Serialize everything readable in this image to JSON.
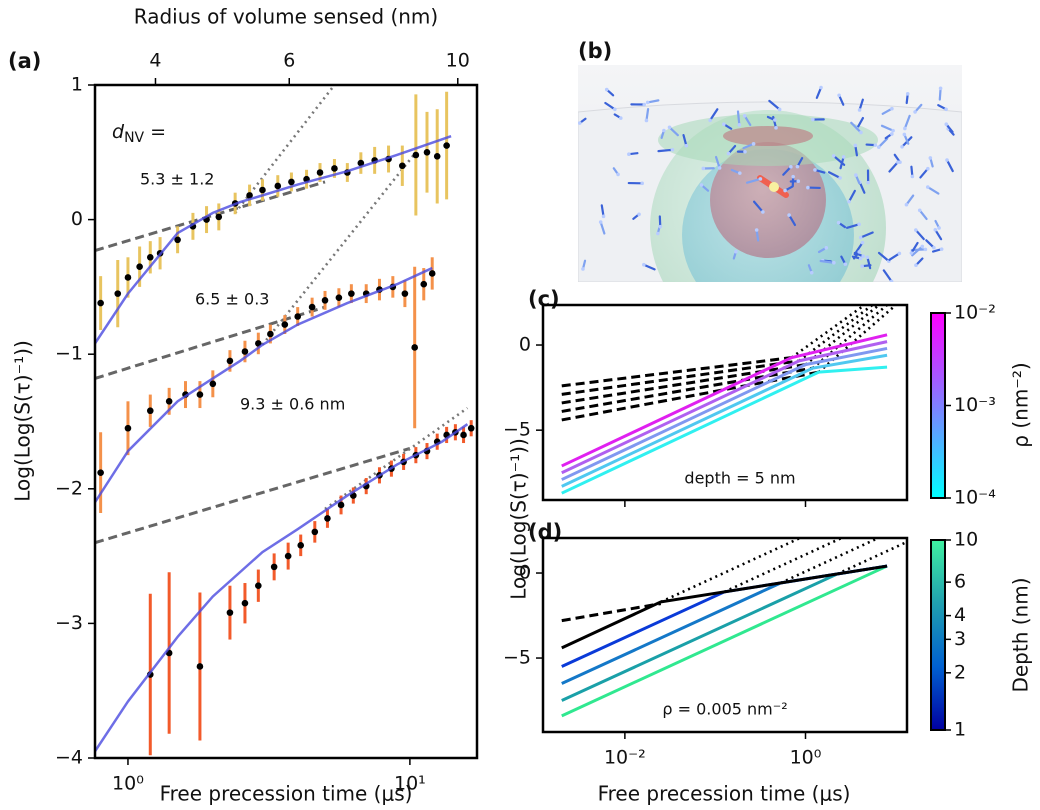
{
  "chart_data": [
    {
      "type": "scatter",
      "panel_label": "(a)",
      "x_label": "Free precession time (μs)",
      "y_label": "Log(Log(S(τ)⁻¹))",
      "x2_label": "Radius of volume sensed (nm)",
      "xscale": "log",
      "xlim": [
        0.764,
        17.3
      ],
      "xticks": [
        {
          "value": 1,
          "label": "10⁰"
        },
        {
          "value": 10,
          "label": "10¹"
        }
      ],
      "x2scale": "log",
      "x2lim": [
        3.33,
        10.6
      ],
      "x2ticks": [
        4,
        6,
        10
      ],
      "ylim": [
        -4,
        1
      ],
      "yticks": [
        {
          "value": -4,
          "label": "−4"
        },
        {
          "value": -3,
          "label": "−3"
        },
        {
          "value": -2,
          "label": "−2"
        },
        {
          "value": -1,
          "label": "−1"
        },
        0,
        1
      ],
      "dnv_label": {
        "symbol": "d",
        "subscript": "NV",
        "equals": "="
      },
      "annotations": [
        "5.3 ± 1.2",
        "6.5 ± 0.3",
        "9.3 ± 0.6 nm"
      ],
      "series": [
        {
          "color": "#e8c45f",
          "x": [
            0.8,
            0.92,
            1.0,
            1.1,
            1.2,
            1.3,
            1.5,
            1.7,
            1.9,
            2.1,
            2.4,
            2.7,
            3.0,
            3.4,
            3.8,
            4.3,
            4.8,
            5.4,
            6.0,
            6.7,
            7.5,
            8.4,
            9.4,
            10.5,
            11.5,
            12.5,
            13.5
          ],
          "values": [
            -0.62,
            -0.55,
            -0.43,
            -0.35,
            -0.28,
            -0.25,
            -0.15,
            -0.05,
            0.0,
            0.02,
            0.12,
            0.18,
            0.22,
            0.25,
            0.28,
            0.3,
            0.35,
            0.38,
            0.35,
            0.42,
            0.44,
            0.45,
            0.4,
            0.48,
            0.5,
            0.47,
            0.55
          ],
          "errors": [
            0.2,
            0.25,
            0.15,
            0.15,
            0.12,
            0.12,
            0.1,
            0.1,
            0.1,
            0.1,
            0.08,
            0.08,
            0.08,
            0.08,
            0.07,
            0.07,
            0.07,
            0.07,
            0.07,
            0.08,
            0.1,
            0.1,
            0.15,
            0.45,
            0.3,
            0.35,
            0.4
          ]
        },
        {
          "color": "#f4914a",
          "x": [
            0.8,
            1.0,
            1.2,
            1.4,
            1.6,
            1.8,
            2.0,
            2.3,
            2.6,
            2.9,
            3.2,
            3.6,
            4.0,
            4.5,
            5.0,
            5.6,
            6.2,
            7.0,
            7.8,
            8.7,
            9.6,
            10.4,
            11.2,
            12.0
          ],
          "values": [
            -1.88,
            -1.55,
            -1.42,
            -1.35,
            -1.3,
            -1.3,
            -1.22,
            -1.05,
            -0.98,
            -0.92,
            -0.85,
            -0.78,
            -0.72,
            -0.65,
            -0.6,
            -0.58,
            -0.55,
            -0.55,
            -0.52,
            -0.5,
            -0.55,
            -0.95,
            -0.48,
            -0.4
          ],
          "errors": [
            0.3,
            0.2,
            0.12,
            0.1,
            0.1,
            0.1,
            0.1,
            0.08,
            0.08,
            0.08,
            0.07,
            0.07,
            0.07,
            0.07,
            0.07,
            0.07,
            0.07,
            0.07,
            0.08,
            0.08,
            0.1,
            0.6,
            0.12,
            0.12
          ]
        },
        {
          "color": "#f25a2a",
          "x": [
            1.2,
            1.4,
            1.8,
            2.3,
            2.6,
            2.9,
            3.3,
            3.7,
            4.1,
            4.6,
            5.1,
            5.7,
            6.3,
            7.0,
            7.8,
            8.6,
            9.5,
            10.5,
            11.5,
            12.5,
            13.5,
            14.5,
            15.5,
            16.5
          ],
          "values": [
            -3.38,
            -3.22,
            -3.32,
            -2.92,
            -2.85,
            -2.72,
            -2.58,
            -2.5,
            -2.42,
            -2.32,
            -2.22,
            -2.12,
            -2.05,
            -1.98,
            -1.9,
            -1.85,
            -1.8,
            -1.75,
            -1.72,
            -1.65,
            -1.6,
            -1.58,
            -1.6,
            -1.55
          ],
          "errors": [
            0.6,
            0.6,
            0.55,
            0.2,
            0.15,
            0.12,
            0.1,
            0.1,
            0.08,
            0.08,
            0.07,
            0.07,
            0.06,
            0.06,
            0.06,
            0.06,
            0.06,
            0.06,
            0.06,
            0.06,
            0.06,
            0.06,
            0.06,
            0.06
          ]
        }
      ],
      "lines": [
        {
          "style": "dashed",
          "color": "#666666",
          "x": [
            0.764,
            5
          ],
          "values": [
            -0.23,
            0.28
          ]
        },
        {
          "style": "dashed",
          "color": "#666666",
          "x": [
            0.764,
            5
          ],
          "values": [
            -1.18,
            -0.65
          ]
        },
        {
          "style": "dashed",
          "color": "#666666",
          "x": [
            0.764,
            10
          ],
          "values": [
            -2.4,
            -1.7
          ]
        },
        {
          "style": "dotted",
          "color": "#777777",
          "x": [
            2.4,
            5.4
          ],
          "values": [
            0.05,
            1
          ]
        },
        {
          "style": "dotted",
          "color": "#777777",
          "x": [
            3,
            10.5
          ],
          "values": [
            -0.93,
            0.5
          ]
        },
        {
          "style": "dotted",
          "color": "#777777",
          "x": [
            5,
            16
          ],
          "values": [
            -2.15,
            -1.4
          ]
        },
        {
          "style": "solid",
          "color": "#4a4ae0",
          "x": [
            0.764,
            1,
            1.5,
            2,
            2.5,
            3,
            4,
            6,
            9,
            14
          ],
          "values": [
            -0.92,
            -0.55,
            -0.1,
            0.05,
            0.13,
            0.18,
            0.26,
            0.36,
            0.48,
            0.62
          ]
        },
        {
          "style": "solid",
          "color": "#4a4ae0",
          "x": [
            0.764,
            1,
            1.5,
            2,
            2.5,
            3,
            4,
            6,
            9,
            12
          ],
          "values": [
            -2.1,
            -1.72,
            -1.35,
            -1.18,
            -1.05,
            -0.93,
            -0.78,
            -0.62,
            -0.48,
            -0.36
          ]
        },
        {
          "style": "solid",
          "color": "#4a4ae0",
          "x": [
            0.764,
            1,
            1.5,
            2,
            3,
            4,
            6,
            9,
            13,
            16
          ],
          "values": [
            -3.95,
            -3.58,
            -3.1,
            -2.8,
            -2.47,
            -2.3,
            -2.05,
            -1.82,
            -1.65,
            -1.52
          ]
        }
      ]
    },
    {
      "type": "line",
      "panel_label": "(c)",
      "y_label": "Log(Log(S(τ)⁻¹))",
      "xscale": "log",
      "xlim": [
        0.00124,
        13.3
      ],
      "xticks": [
        0.01,
        1
      ],
      "xtick_labels": false,
      "ylim": [
        -9.1,
        2.35
      ],
      "yticks": [
        {
          "value": -5,
          "label": "−5"
        },
        0
      ],
      "annotations": [
        "depth = 5 nm"
      ],
      "colorbar": {
        "label": "ρ (nm⁻²)",
        "scale": "log",
        "lim": [
          0.0001,
          0.01
        ],
        "ticks": [
          {
            "value": 0.01,
            "label": "10⁻²"
          },
          {
            "value": 0.001,
            "label": "10⁻³"
          },
          {
            "value": 0.0001,
            "label": "10⁻⁴"
          }
        ],
        "colors": [
          "#00ffff",
          "#ff00ff"
        ]
      },
      "lines": [
        {
          "style": "dashed",
          "color": "#000000",
          "x": [
            0.002,
            0.7
          ],
          "values": [
            -2.4,
            -0.74
          ]
        },
        {
          "style": "dashed",
          "color": "#000000",
          "x": [
            0.002,
            0.85
          ],
          "values": [
            -2.9,
            -0.93
          ]
        },
        {
          "style": "dashed",
          "color": "#000000",
          "x": [
            0.002,
            1.0
          ],
          "values": [
            -3.4,
            -1.15
          ]
        },
        {
          "style": "dashed",
          "color": "#000000",
          "x": [
            0.002,
            1.2
          ],
          "values": [
            -3.9,
            -1.36
          ]
        },
        {
          "style": "dashed",
          "color": "#000000",
          "x": [
            0.002,
            1.4
          ],
          "values": [
            -4.4,
            -1.59
          ]
        },
        {
          "style": "dotted",
          "color": "#000000",
          "x": [
            0.7,
            4.5
          ],
          "values": [
            -0.74,
            2.35
          ]
        },
        {
          "style": "dotted",
          "color": "#000000",
          "x": [
            0.85,
            5.5
          ],
          "values": [
            -0.93,
            2.35
          ]
        },
        {
          "style": "dotted",
          "color": "#000000",
          "x": [
            1.0,
            6.5
          ],
          "values": [
            -1.15,
            2.35
          ]
        },
        {
          "style": "dotted",
          "color": "#000000",
          "x": [
            1.2,
            8
          ],
          "values": [
            -1.36,
            2.35
          ]
        },
        {
          "style": "dotted",
          "color": "#000000",
          "x": [
            1.4,
            10
          ],
          "values": [
            -1.59,
            2.35
          ]
        },
        {
          "style": "solid",
          "color": "#e020f0",
          "x": [
            0.002,
            0.7,
            8
          ],
          "values": [
            -7.1,
            -0.74,
            0.6
          ]
        },
        {
          "style": "solid",
          "color": "#b060f0",
          "x": [
            0.002,
            0.85,
            8
          ],
          "values": [
            -7.5,
            -0.93,
            0.2
          ]
        },
        {
          "style": "solid",
          "color": "#8098f0",
          "x": [
            0.002,
            1.0,
            8
          ],
          "values": [
            -7.9,
            -1.15,
            -0.2
          ]
        },
        {
          "style": "solid",
          "color": "#50c8f0",
          "x": [
            0.002,
            1.2,
            8
          ],
          "values": [
            -8.3,
            -1.36,
            -0.6
          ]
        },
        {
          "style": "solid",
          "color": "#30f0f0",
          "x": [
            0.002,
            1.4,
            8
          ],
          "values": [
            -8.7,
            -1.59,
            -1.3
          ]
        }
      ]
    },
    {
      "type": "line",
      "panel_label": "(d)",
      "x_label": "Free precession time (μs)",
      "xscale": "log",
      "xlim": [
        0.00124,
        13.3
      ],
      "xticks": [
        {
          "value": 0.01,
          "label": "10⁻²"
        },
        {
          "value": 1,
          "label": "10⁰"
        }
      ],
      "ylim": [
        -9.35,
        2.06
      ],
      "yticks": [
        {
          "value": -5,
          "label": "−5"
        },
        0
      ],
      "annotations": [
        "ρ = 0.005  nm⁻²"
      ],
      "colorbar": {
        "label": "Depth (nm)",
        "scale": "log",
        "lim": [
          1,
          10
        ],
        "ticks": [
          1,
          2,
          3,
          4,
          6,
          10
        ],
        "colors": [
          "#0000a0",
          "#0060d0",
          "#20a0b0",
          "#40f0a0"
        ]
      },
      "lines": [
        {
          "style": "dashed",
          "color": "#000000",
          "x": [
            0.002,
            0.025
          ],
          "values": [
            -2.8,
            -1.8
          ]
        },
        {
          "style": "dotted",
          "color": "#000000",
          "x": [
            0.025,
            0.87
          ],
          "values": [
            -1.7,
            2.06
          ]
        },
        {
          "style": "dotted",
          "color": "#000000",
          "x": [
            0.126,
            2.51
          ],
          "values": [
            -1.11,
            2.06
          ]
        },
        {
          "style": "dotted",
          "color": "#000000",
          "x": [
            0.53,
            6.4
          ],
          "values": [
            -0.585,
            2.06
          ]
        },
        {
          "style": "dotted",
          "color": "#000000",
          "x": [
            2.24,
            13.3
          ],
          "values": [
            -0.06,
            1.83
          ]
        },
        {
          "style": "solid",
          "color": "#30e890",
          "x": [
            0.002,
            8
          ],
          "values": [
            -8.4,
            0.41
          ]
        },
        {
          "style": "solid",
          "color": "#1aa0a8",
          "x": [
            0.002,
            2.24,
            8
          ],
          "values": [
            -7.5,
            -0.06,
            0.41
          ]
        },
        {
          "style": "solid",
          "color": "#1478c8",
          "x": [
            0.002,
            0.53,
            8
          ],
          "values": [
            -6.5,
            -0.585,
            0.41
          ]
        },
        {
          "style": "solid",
          "color": "#0a3ad8",
          "x": [
            0.002,
            0.126,
            8
          ],
          "values": [
            -5.5,
            -1.11,
            0.41
          ]
        },
        {
          "style": "solid",
          "color": "#000000",
          "x": [
            0.002,
            0.025,
            8
          ],
          "values": [
            -4.4,
            -1.7,
            0.41
          ]
        }
      ]
    }
  ],
  "image_panel": {
    "panel_label": "(b)"
  }
}
